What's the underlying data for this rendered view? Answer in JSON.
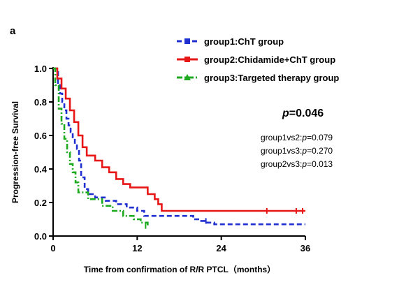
{
  "panel_label": "a",
  "chart_data": {
    "type": "line",
    "step": true,
    "xlabel": "Time from confirmation of R/R PTCL（months）",
    "ylabel": "Progression-free Survival",
    "xlim": [
      0,
      36
    ],
    "ylim": [
      0,
      1.0
    ],
    "xticks": [
      0,
      12,
      24,
      36
    ],
    "yticks": [
      0.0,
      0.2,
      0.4,
      0.6,
      0.8,
      1.0
    ],
    "xtick_labels": [
      "0",
      "12",
      "24",
      "36"
    ],
    "ytick_labels": [
      "0.0",
      "0.2",
      "0.4",
      "0.6",
      "0.8",
      "1.0"
    ],
    "grid": false,
    "legend_position": "top-right",
    "series": [
      {
        "name": "group1:ChT group",
        "color": "#1f2fd0",
        "dash": "dashed",
        "marker": "square",
        "x": [
          0,
          0.7,
          1.0,
          1.3,
          1.6,
          1.9,
          2.2,
          2.5,
          2.8,
          3.1,
          3.4,
          3.7,
          4.0,
          4.5,
          5.0,
          6.0,
          7.5,
          9.0,
          10.5,
          12.0,
          13.0,
          15.0,
          16.0,
          20.0,
          21.0,
          22.0,
          23.0,
          36.0
        ],
        "y": [
          1.0,
          0.9,
          0.85,
          0.8,
          0.75,
          0.7,
          0.66,
          0.62,
          0.58,
          0.55,
          0.52,
          0.45,
          0.35,
          0.28,
          0.25,
          0.23,
          0.21,
          0.19,
          0.17,
          0.15,
          0.12,
          0.12,
          0.12,
          0.1,
          0.09,
          0.08,
          0.07,
          0.07
        ],
        "censored": [
          [
            21.8,
            0.09
          ]
        ]
      },
      {
        "name": "group2:Chidamide+ChT group",
        "color": "#e81717",
        "dash": "solid",
        "marker": "square",
        "x": [
          0,
          0.6,
          1.2,
          1.8,
          2.4,
          3.0,
          3.6,
          4.2,
          4.8,
          6.0,
          7.0,
          8.0,
          9.0,
          10.0,
          11.0,
          13.5,
          14.5,
          15.0,
          15.5,
          36.0
        ],
        "y": [
          1.0,
          0.94,
          0.88,
          0.82,
          0.75,
          0.68,
          0.6,
          0.53,
          0.48,
          0.45,
          0.41,
          0.38,
          0.34,
          0.31,
          0.29,
          0.25,
          0.22,
          0.19,
          0.15,
          0.15
        ],
        "censored": [
          [
            30.5,
            0.15
          ],
          [
            34.7,
            0.15
          ],
          [
            35.6,
            0.15
          ]
        ]
      },
      {
        "name": "group3:Targeted therapy group",
        "color": "#1eaa1e",
        "dash": "dashdot",
        "marker": "triangle",
        "x": [
          0,
          0.3,
          0.8,
          1.2,
          1.6,
          2.0,
          2.4,
          2.8,
          3.2,
          3.6,
          5.0,
          7.0,
          8.5,
          10.0,
          11.5,
          12.5,
          13.5
        ],
        "y": [
          1.0,
          0.9,
          0.76,
          0.67,
          0.58,
          0.5,
          0.43,
          0.38,
          0.32,
          0.26,
          0.22,
          0.18,
          0.15,
          0.12,
          0.1,
          0.08,
          0.06
        ],
        "censored": [
          [
            13.2,
            0.06
          ]
        ]
      }
    ],
    "annotations": {
      "p_overall_label": "p",
      "p_overall_value": "=0.046",
      "comparisons": [
        {
          "prefix": "group1vs2:",
          "p": "p",
          "value": "=0.079"
        },
        {
          "prefix": "group1vs3:",
          "p": "p",
          "value": "=0.270"
        },
        {
          "prefix": "group2vs3:",
          "p": "p",
          "value": "=0.013"
        }
      ]
    }
  }
}
